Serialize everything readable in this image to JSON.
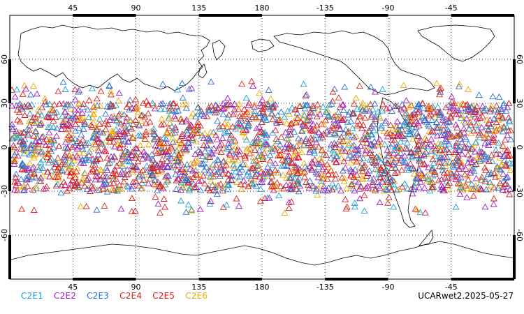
{
  "map": {
    "projection": "cylindrical-equidistant",
    "center_longitude": 180,
    "lon_ticks": [
      "45",
      "90",
      "135",
      "180",
      "-135",
      "-90",
      "-45"
    ],
    "lat_ticks": [
      "60",
      "30",
      "0",
      "-30",
      "-60"
    ],
    "lat_range": [
      -90,
      90
    ],
    "grid": "dotted",
    "frame_color": "#000000",
    "coastline_color": "#000000"
  },
  "legend": {
    "items": [
      {
        "label": "C2E1",
        "color": "#1a9fd0"
      },
      {
        "label": "C2E2",
        "color": "#a318c0"
      },
      {
        "label": "C2E3",
        "color": "#2a6fd6"
      },
      {
        "label": "C2E4",
        "color": "#d0281e"
      },
      {
        "label": "C2E5",
        "color": "#e01414"
      },
      {
        "label": "C2E6",
        "color": "#f0a800"
      }
    ]
  },
  "credit": "UCARwet2.2025-05-27",
  "observations": {
    "marker": "open-triangle",
    "lat_extent": [
      -45,
      45
    ],
    "dense_band": [
      -30,
      30
    ]
  }
}
